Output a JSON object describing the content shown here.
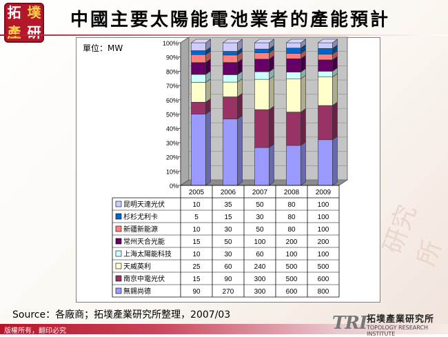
{
  "logo": {
    "chars": [
      "拓",
      "墣",
      "產",
      "研"
    ]
  },
  "title": "中國主要太陽能電池業者的產能預計",
  "unit_label": "單位：MW",
  "source": "Source：各廠商；拓墣產業研究所整理，2007/03",
  "copyright": "版權所有，翻印必究",
  "brand": {
    "tri": "TRI",
    "company": "拓墣產業研究所",
    "company_en": "TOPOLOGY RESEARCH INSTITUTE",
    "watermark": "研究所"
  },
  "colors": {
    "accent": "#b4162a"
  },
  "chart_data": {
    "type": "bar",
    "stacked": "percent",
    "categories": [
      "2005",
      "2006",
      "2007",
      "2008",
      "2009"
    ],
    "yticks": [
      "0%",
      "10%",
      "20%",
      "30%",
      "40%",
      "50%",
      "60%",
      "70%",
      "80%",
      "90%",
      "100%"
    ],
    "ylim": [
      0,
      100
    ],
    "series": [
      {
        "name": "無錫尚德",
        "color": "#9999ff",
        "values": [
          90,
          270,
          300,
          600,
          800
        ]
      },
      {
        "name": "南京中電光伏",
        "color": "#993366",
        "values": [
          15,
          90,
          300,
          500,
          600
        ]
      },
      {
        "name": "天威英利",
        "color": "#ffffcc",
        "values": [
          25,
          60,
          240,
          500,
          500
        ]
      },
      {
        "name": "上海太陽能科技",
        "color": "#ccffff",
        "values": [
          10,
          30,
          60,
          100,
          100
        ]
      },
      {
        "name": "常州天合光能",
        "color": "#660066",
        "values": [
          15,
          50,
          100,
          200,
          200
        ]
      },
      {
        "name": "新疆新能源",
        "color": "#ff8080",
        "values": [
          10,
          30,
          50,
          80,
          100
        ]
      },
      {
        "name": "杉杉尤利卡",
        "color": "#0066cc",
        "values": [
          5,
          15,
          30,
          80,
          100
        ]
      },
      {
        "name": "昆明天達光伏",
        "color": "#ccccff",
        "values": [
          10,
          35,
          50,
          80,
          100
        ]
      }
    ]
  }
}
